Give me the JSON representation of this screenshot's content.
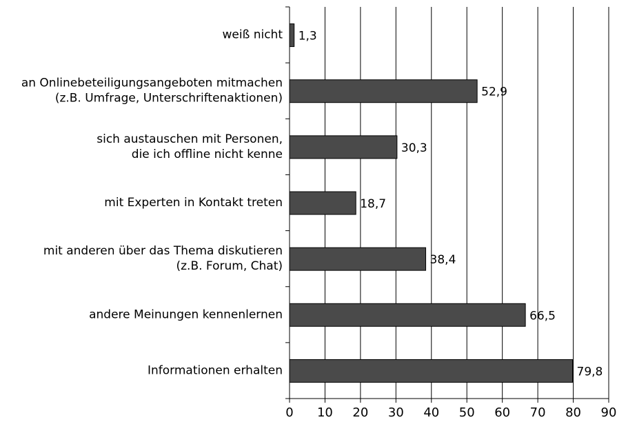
{
  "chart_data": {
    "type": "bar",
    "orientation": "horizontal",
    "categories": [
      "weiß nicht",
      "an Onlinebeteiligungsangeboten mitmachen\n(z.B. Umfrage, Unterschriftenaktionen)",
      "sich austauschen mit Personen,\ndie ich offline nicht kenne",
      "mit Experten in Kontakt treten",
      "mit anderen über das Thema diskutieren\n(z.B. Forum, Chat)",
      "andere Meinungen kennenlernen",
      "Informationen erhalten"
    ],
    "values": [
      1.3,
      52.9,
      30.3,
      18.7,
      38.4,
      66.5,
      79.8
    ],
    "value_labels": [
      "1,3",
      "52,9",
      "30,3",
      "18,7",
      "38,4",
      "66,5",
      "79,8"
    ],
    "color": "#4a4a4a",
    "xlim": [
      0,
      90
    ],
    "xticks": [
      0,
      10,
      20,
      30,
      40,
      50,
      60,
      70,
      80,
      90
    ],
    "grid": true
  }
}
